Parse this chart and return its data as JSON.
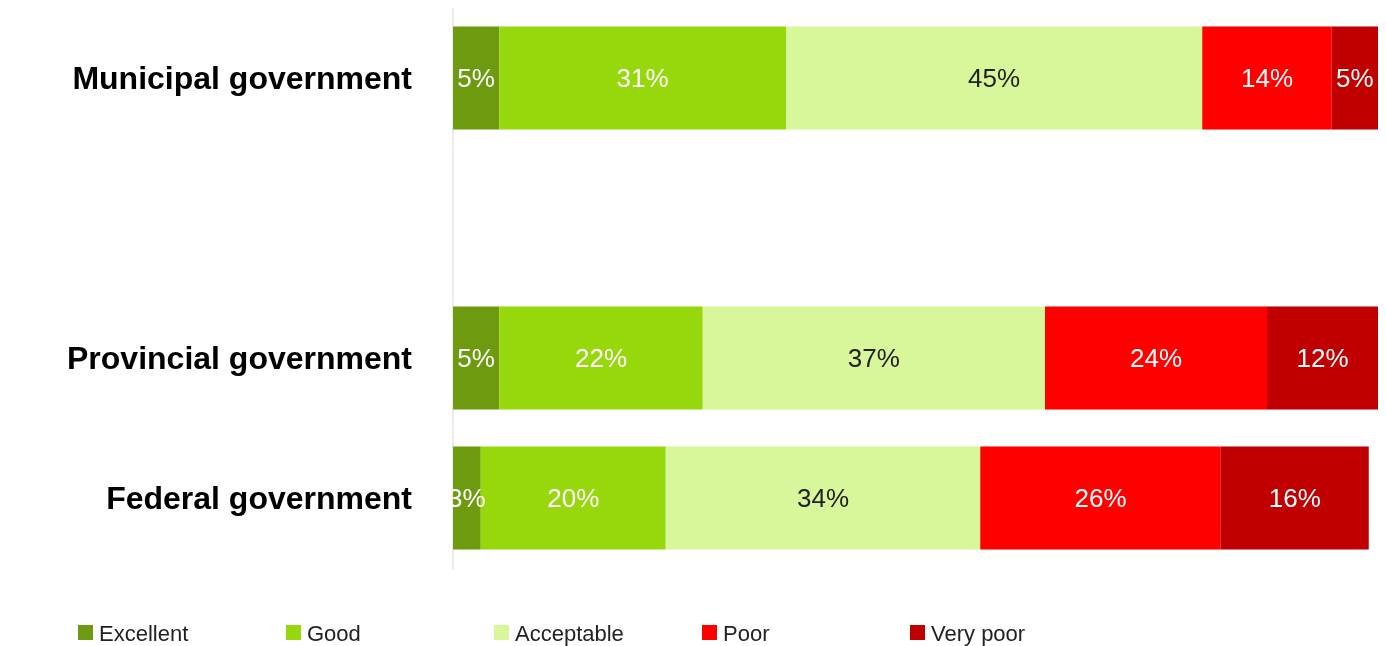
{
  "chart_data": {
    "type": "bar",
    "orientation": "horizontal",
    "stacked": true,
    "categories": [
      "Municipal government",
      null,
      "Provincial government",
      "Federal government"
    ],
    "series": [
      {
        "name": "Excellent",
        "color": "#6e9a0f",
        "values": [
          5,
          null,
          5,
          3
        ],
        "value_labels": [
          "5%",
          null,
          "5%",
          "3%"
        ]
      },
      {
        "name": "Good",
        "color": "#96d80c",
        "values": [
          31,
          null,
          22,
          20
        ],
        "value_labels": [
          "31%",
          null,
          "22%",
          "20%"
        ]
      },
      {
        "name": "Acceptable",
        "color": "#d7f79a",
        "values": [
          45,
          null,
          37,
          34
        ],
        "value_labels": [
          "45%",
          null,
          "37%",
          "34%"
        ]
      },
      {
        "name": "Poor",
        "color": "#ff0000",
        "values": [
          14,
          null,
          24,
          26
        ],
        "value_labels": [
          "14%",
          null,
          "24%",
          "26%"
        ]
      },
      {
        "name": "Very poor",
        "color": "#c00000",
        "values": [
          5,
          null,
          12,
          16
        ],
        "value_labels": [
          "5%",
          null,
          "12%",
          "16%"
        ]
      }
    ],
    "legend": "bottom",
    "grid": false
  }
}
